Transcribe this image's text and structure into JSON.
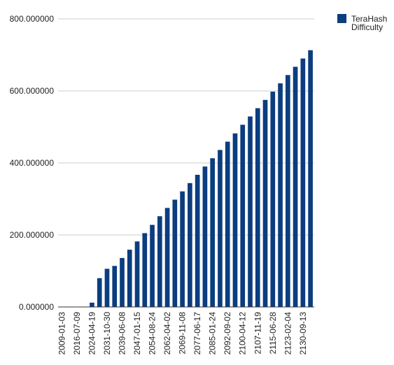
{
  "chart_data": {
    "type": "bar",
    "legend_position": "top-right",
    "grid": true,
    "ylim": [
      0,
      800
    ],
    "y_ticks": [
      "0.000000",
      "200.000000",
      "400.000000",
      "600.000000",
      "800.000000"
    ],
    "x_tick_labels": [
      "2009-01-03",
      "2016-07-09",
      "2024-04-19",
      "2031-10-30",
      "2039-06-08",
      "2047-01-15",
      "2054-08-24",
      "2062-04-02",
      "2069-11-08",
      "2077-06-17",
      "2085-01-24",
      "2092-09-02",
      "2100-04-12",
      "2107-11-19",
      "2115-06-28",
      "2123-02-04",
      "2130-09-13"
    ],
    "series": [
      {
        "name": "TeraHash Difficulty",
        "color": "#0b3d7f",
        "values": [
          0,
          0,
          0,
          0,
          12,
          80,
          106,
          114,
          136,
          159,
          182,
          205,
          228,
          252,
          275,
          298,
          321,
          344,
          367,
          390,
          413,
          436,
          459,
          482,
          506,
          529,
          552,
          575,
          598,
          621,
          644,
          667,
          690,
          713
        ]
      }
    ]
  }
}
